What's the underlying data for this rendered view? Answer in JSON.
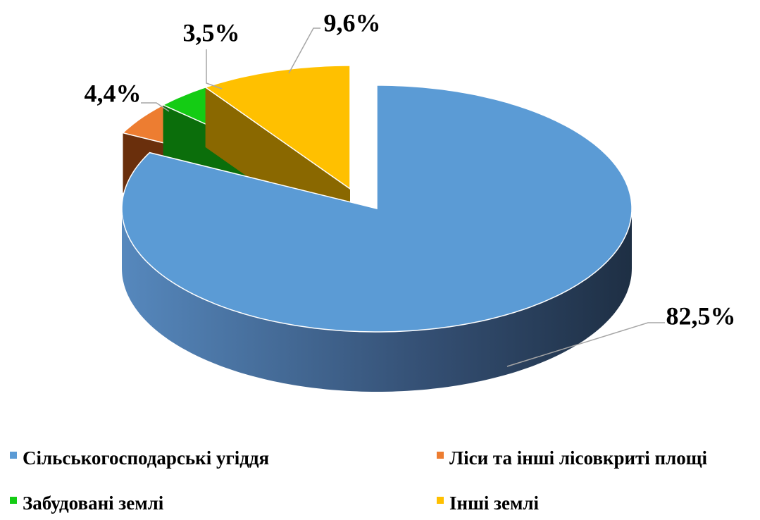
{
  "chart_data": {
    "type": "pie",
    "categories": [
      "Сільськогосподарські угіддя",
      "Ліси та інші лісовкриті площі",
      "Забудовані землі",
      "Інші землі"
    ],
    "values": [
      82.5,
      4.4,
      3.5,
      9.6
    ],
    "value_labels": [
      "82,5%",
      "4,4%",
      "3,5%",
      "9,6%"
    ],
    "colors": [
      "#5b9bd5",
      "#ed7d31",
      "#14cc14",
      "#ffc000"
    ],
    "legend": "bottom"
  }
}
